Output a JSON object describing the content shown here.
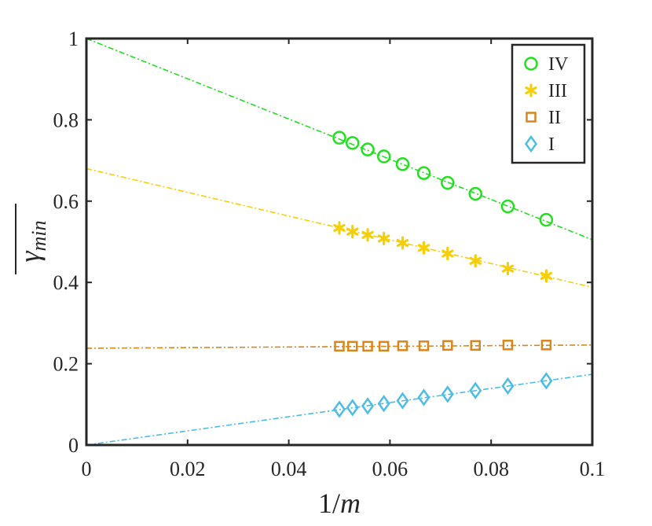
{
  "chart_data": {
    "type": "scatter",
    "xlabel": "1/m",
    "ylabel": "γ_min (overlined)",
    "xlim": [
      0,
      0.1
    ],
    "ylim": [
      0,
      1
    ],
    "x_ticks": [
      0,
      0.02,
      0.04,
      0.06,
      0.08,
      0.1
    ],
    "x_tick_labels": [
      "0",
      "0.02",
      "0.04",
      "0.06",
      "0.08",
      "0.1"
    ],
    "y_ticks": [
      0,
      0.2,
      0.4,
      0.6,
      0.8,
      1
    ],
    "y_tick_labels": [
      "0",
      "0.2",
      "0.4",
      "0.6",
      "0.8",
      "1"
    ],
    "x": [
      0.05,
      0.0526,
      0.0556,
      0.0588,
      0.0625,
      0.0667,
      0.0714,
      0.0769,
      0.0833,
      0.0909
    ],
    "legend_position": "top-right",
    "series": [
      {
        "name": "IV",
        "marker": "circle",
        "color": "#22e01f",
        "values": [
          0.756,
          0.743,
          0.727,
          0.71,
          0.691,
          0.669,
          0.645,
          0.618,
          0.587,
          0.554
        ],
        "fit": {
          "intercept": 1.0,
          "slope": -4.95
        }
      },
      {
        "name": "III",
        "marker": "asterisk",
        "color": "#f6cf0b",
        "values": [
          0.534,
          0.525,
          0.517,
          0.508,
          0.497,
          0.485,
          0.471,
          0.453,
          0.434,
          0.416
        ],
        "fit": {
          "intercept": 0.68,
          "slope": -2.92
        }
      },
      {
        "name": "II",
        "marker": "square",
        "color": "#d9861c",
        "values": [
          0.243,
          0.243,
          0.243,
          0.243,
          0.244,
          0.244,
          0.245,
          0.245,
          0.246,
          0.246
        ],
        "fit": {
          "intercept": 0.238,
          "slope": 0.08
        }
      },
      {
        "name": "I",
        "marker": "diamond",
        "color": "#4dbde6",
        "values": [
          0.088,
          0.092,
          0.096,
          0.102,
          0.109,
          0.117,
          0.125,
          0.134,
          0.145,
          0.158
        ],
        "fit": {
          "intercept": 0.0,
          "slope": 1.74
        }
      }
    ]
  }
}
